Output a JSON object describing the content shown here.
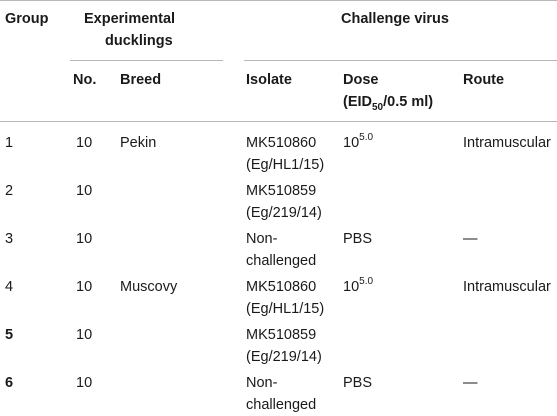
{
  "table": {
    "headers": {
      "group": "Group",
      "experimental_line1": "Experimental",
      "experimental_line2": "ducklings",
      "challenge": "Challenge virus",
      "no": "No.",
      "breed": "Breed",
      "isolate": "Isolate",
      "dose_line1": "Dose",
      "dose_pre": "(EID",
      "dose_sub": "50",
      "dose_post": "/0.5 ml)",
      "route": "Route"
    },
    "rows": [
      {
        "group": "1",
        "no": "10",
        "breed": "Pekin",
        "isolate1": "MK510860",
        "isolate2": "(Eg/HL1/15)",
        "dose_base": "10",
        "dose_exp": "5.0",
        "dose_text": "",
        "route": "Intramuscular"
      },
      {
        "group": "2",
        "no": "10",
        "breed": "",
        "isolate1": "MK510859",
        "isolate2": "(Eg/219/14)",
        "dose_base": "",
        "dose_exp": "",
        "dose_text": "",
        "route": ""
      },
      {
        "group": "3",
        "no": "10",
        "breed": "",
        "isolate1": "Non-",
        "isolate2": "challenged",
        "dose_base": "",
        "dose_exp": "",
        "dose_text": "PBS",
        "route": "—"
      },
      {
        "group": "4",
        "no": "10",
        "breed": "Muscovy",
        "isolate1": "MK510860",
        "isolate2": "(Eg/HL1/15)",
        "dose_base": "10",
        "dose_exp": "5.0",
        "dose_text": "",
        "route": "Intramuscular"
      },
      {
        "group": "5",
        "no": "10",
        "breed": "",
        "isolate1": "MK510859",
        "isolate2": "(Eg/219/14)",
        "dose_base": "",
        "dose_exp": "",
        "dose_text": "",
        "route": ""
      },
      {
        "group": "6",
        "no": "10",
        "breed": "",
        "isolate1": "Non-",
        "isolate2": "challenged",
        "dose_base": "",
        "dose_exp": "",
        "dose_text": "PBS",
        "route": "—"
      }
    ]
  }
}
